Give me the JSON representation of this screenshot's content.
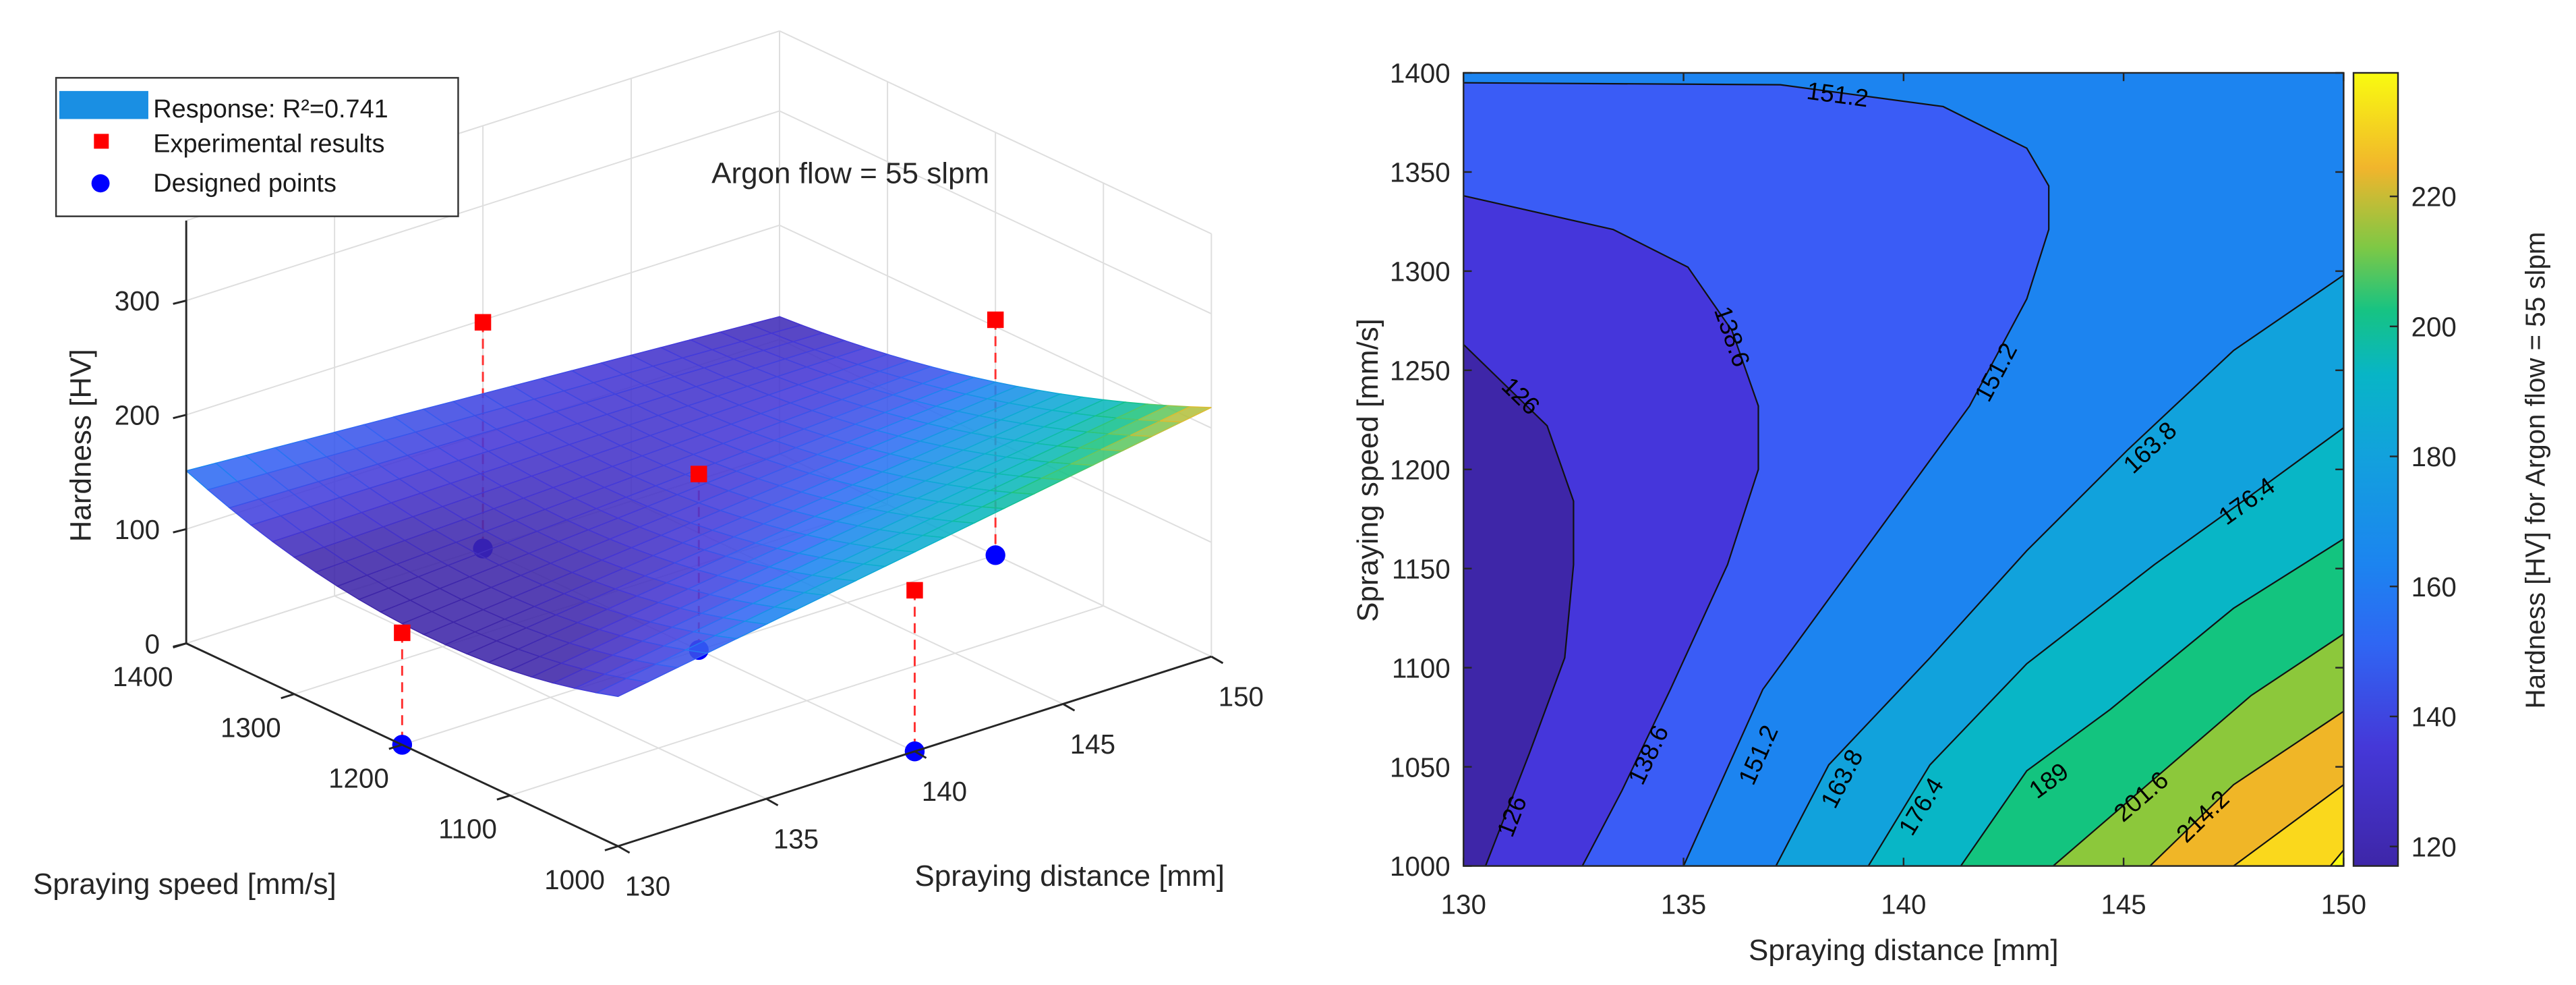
{
  "chart_data": [
    {
      "type": "surface3d",
      "title": "Argon flow = 55 slpm",
      "xlabel": "Spraying distance [mm]",
      "ylabel": "Spraying speed [mm/s]",
      "zlabel": "Hardness [HV]",
      "xlim": [
        130,
        150
      ],
      "ylim": [
        1000,
        1400
      ],
      "zlim": [
        0,
        370
      ],
      "xticks": [
        130,
        135,
        140,
        145,
        150
      ],
      "yticks": [
        1000,
        1100,
        1200,
        1300,
        1400
      ],
      "zticks": [
        0,
        100,
        200,
        300
      ],
      "legend_position": "top-left",
      "legend": [
        {
          "label": "Response: R²=0.741",
          "marker": "surface",
          "color": "#1a8fe3"
        },
        {
          "label": "Experimental results",
          "marker": "square",
          "color": "#ff0000"
        },
        {
          "label": "Designed points",
          "marker": "circle",
          "color": "#0000ff"
        }
      ],
      "surface_corner_values": {
        "d130_s1400": 151,
        "d150_s1400": 120,
        "d150_s1000": 218,
        "d130_s1000": 131
      },
      "series": [
        {
          "name": "Experimental results",
          "points": [
            [
              140,
              1400,
              198
            ],
            [
              140,
              1200,
              154
            ],
            [
              150,
              1200,
              206
            ],
            [
              130,
              1200,
              98
            ],
            [
              140,
              1000,
              141
            ]
          ]
        },
        {
          "name": "Designed points",
          "points": [
            [
              140,
              1400,
              0
            ],
            [
              140,
              1200,
              0
            ],
            [
              150,
              1200,
              0
            ],
            [
              130,
              1200,
              0
            ],
            [
              140,
              1000,
              0
            ]
          ]
        }
      ]
    },
    {
      "type": "contour",
      "xlabel": "Spraying distance [mm]",
      "ylabel": "Spraying speed [mm/s]",
      "xlim": [
        130,
        150
      ],
      "ylim": [
        1000,
        1400
      ],
      "xticks": [
        130,
        135,
        140,
        145,
        150
      ],
      "yticks": [
        1000,
        1050,
        1100,
        1150,
        1200,
        1250,
        1300,
        1350,
        1400
      ],
      "levels": [
        126,
        138.6,
        151.2,
        163.8,
        176.4,
        189,
        201.6,
        214.2,
        226.8,
        239.4
      ],
      "fill_colors": [
        "#3e26a8",
        "#4536db",
        "#3a5cf6",
        "#1c84f0",
        "#11a2dc",
        "#08b6c6",
        "#13c47f",
        "#8cc83b",
        "#f0b627",
        "#fad81c",
        "#f9fb15"
      ],
      "contour_lines": [
        {
          "level": 126,
          "points": [
            [
              130,
              1263
            ],
            [
              131.9,
              1222
            ],
            [
              132.5,
              1184
            ],
            [
              132.5,
              1152
            ],
            [
              132.3,
              1105
            ],
            [
              131.5,
              1057
            ],
            [
              130.5,
              1000
            ]
          ]
        },
        {
          "level": 138.6,
          "points": [
            [
              130,
              1338
            ],
            [
              133.4,
              1321
            ],
            [
              135.1,
              1302
            ],
            [
              136.1,
              1270
            ],
            [
              136.7,
              1232
            ],
            [
              136.7,
              1200
            ],
            [
              136,
              1152
            ],
            [
              134.7,
              1089
            ],
            [
              133.6,
              1038
            ],
            [
              132.7,
              1000
            ]
          ]
        },
        {
          "level": 151.2,
          "points": [
            [
              130,
              1395
            ],
            [
              137.2,
              1394
            ],
            [
              140.9,
              1383
            ],
            [
              142.8,
              1362
            ],
            [
              143.3,
              1343
            ],
            [
              143.3,
              1321
            ],
            [
              142.8,
              1286
            ],
            [
              141.5,
              1232
            ],
            [
              139.1,
              1159
            ],
            [
              136.8,
              1089
            ],
            [
              135,
              1000
            ]
          ]
        },
        {
          "level": 163.8,
          "points": [
            [
              150,
              1298
            ],
            [
              147.5,
              1260
            ],
            [
              145.1,
              1210
            ],
            [
              142.8,
              1159
            ],
            [
              140.6,
              1105
            ],
            [
              138.3,
              1051
            ],
            [
              137.1,
              1000
            ]
          ]
        },
        {
          "level": 176.4,
          "points": [
            [
              150,
              1221
            ],
            [
              147.9,
              1187
            ],
            [
              145.7,
              1152
            ],
            [
              142.8,
              1102
            ],
            [
              140.6,
              1051
            ],
            [
              139.2,
              1000
            ]
          ]
        },
        {
          "level": 189,
          "points": [
            [
              150,
              1165
            ],
            [
              147.5,
              1130
            ],
            [
              144.7,
              1079
            ],
            [
              142.8,
              1048
            ],
            [
              141.3,
              1000
            ]
          ]
        },
        {
          "level": 201.6,
          "points": [
            [
              150,
              1117
            ],
            [
              147.9,
              1086
            ],
            [
              145.7,
              1044
            ],
            [
              143.4,
              1000
            ]
          ]
        },
        {
          "level": 214.2,
          "points": [
            [
              150,
              1078
            ],
            [
              147.5,
              1041
            ],
            [
              145.6,
              1000
            ]
          ]
        },
        {
          "level": 226.8,
          "points": [
            [
              150,
              1041
            ],
            [
              147.5,
              1000
            ]
          ]
        },
        {
          "level": 239.4,
          "points": [
            [
              150,
              1008
            ],
            [
              149.7,
              1000
            ]
          ]
        }
      ],
      "contour_labels": [
        {
          "text": "151.2",
          "level": 151.2,
          "x": 138.5,
          "y": 1389
        },
        {
          "text": "138.6",
          "level": 138.6,
          "x": 136.1,
          "y": 1267
        },
        {
          "text": "151.2",
          "level": 151.2,
          "x": 142.1,
          "y": 1249
        },
        {
          "text": "126",
          "level": 126,
          "x": 131.3,
          "y": 1237
        },
        {
          "text": "163.8",
          "level": 163.8,
          "x": 145.6,
          "y": 1211
        },
        {
          "text": "176.4",
          "level": 176.4,
          "x": 147.8,
          "y": 1184
        },
        {
          "text": "138.6",
          "level": 138.6,
          "x": 134.2,
          "y": 1056
        },
        {
          "text": "151.2",
          "level": 151.2,
          "x": 136.7,
          "y": 1056
        },
        {
          "text": "163.8",
          "level": 163.8,
          "x": 138.6,
          "y": 1044
        },
        {
          "text": "176.4",
          "level": 176.4,
          "x": 140.4,
          "y": 1030
        },
        {
          "text": "189",
          "level": 189,
          "x": 143.3,
          "y": 1043
        },
        {
          "text": "201.6",
          "level": 201.6,
          "x": 145.4,
          "y": 1035
        },
        {
          "text": "214.2",
          "level": 214.2,
          "x": 146.8,
          "y": 1025
        },
        {
          "text": "126",
          "level": 126,
          "x": 131.1,
          "y": 1025
        }
      ],
      "colorbar": {
        "label": "Hardness [HV] for Argon flow = 55 slpm",
        "ticks": [
          120,
          140,
          160,
          180,
          200,
          220
        ],
        "range": [
          117,
          239
        ],
        "position": "right"
      }
    }
  ]
}
